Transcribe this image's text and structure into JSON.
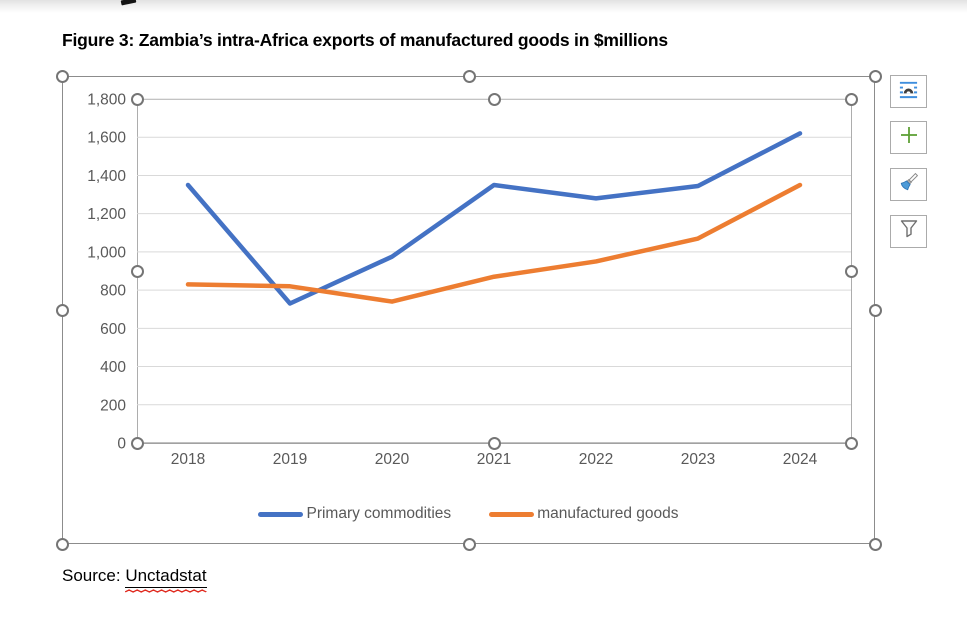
{
  "figure": {
    "title": "Figure 3: Zambia’s intra-Africa exports of manufactured goods in $millions",
    "source_label": "Source: ",
    "source_value": "Unctadstat"
  },
  "colors": {
    "primary_series": "#4472C4",
    "secondary_series": "#ED7D31",
    "grid": "#D9D9D9",
    "axis_line": "#9A9A9A",
    "axis_text": "#595959",
    "spellcheck_red": "#E02B20",
    "selection_handle_ring": "#757575",
    "layout_icon_blue": "#3E8EDE",
    "plus_icon_green": "#5EA036"
  },
  "chart_data": {
    "type": "line",
    "title": "Figure 3: Zambia’s intra-Africa exports of manufactured goods in $millions",
    "categories": [
      "2018",
      "2019",
      "2020",
      "2021",
      "2022",
      "2023",
      "2024"
    ],
    "series": [
      {
        "name": "Primary commodities",
        "color": "#4472C4",
        "values": [
          1350,
          730,
          975,
          1350,
          1280,
          1345,
          1620
        ]
      },
      {
        "name": "manufactured goods",
        "color": "#ED7D31",
        "values": [
          830,
          820,
          740,
          870,
          950,
          1070,
          1350
        ]
      }
    ],
    "xlabel": "",
    "ylabel": "",
    "ylim": [
      0,
      1800
    ],
    "ytick_interval": 200,
    "ytick_labels": [
      "0",
      "200",
      "400",
      "600",
      "800",
      "1,000",
      "1,200",
      "1,400",
      "1,600",
      "1,800"
    ],
    "grid": true,
    "legend_position": "bottom"
  },
  "chart_tools": {
    "buttons": [
      {
        "icon": "layout-options-icon"
      },
      {
        "icon": "add-chart-element-plus-icon"
      },
      {
        "icon": "chart-styles-brush-icon"
      },
      {
        "icon": "chart-filters-funnel-icon"
      }
    ]
  }
}
